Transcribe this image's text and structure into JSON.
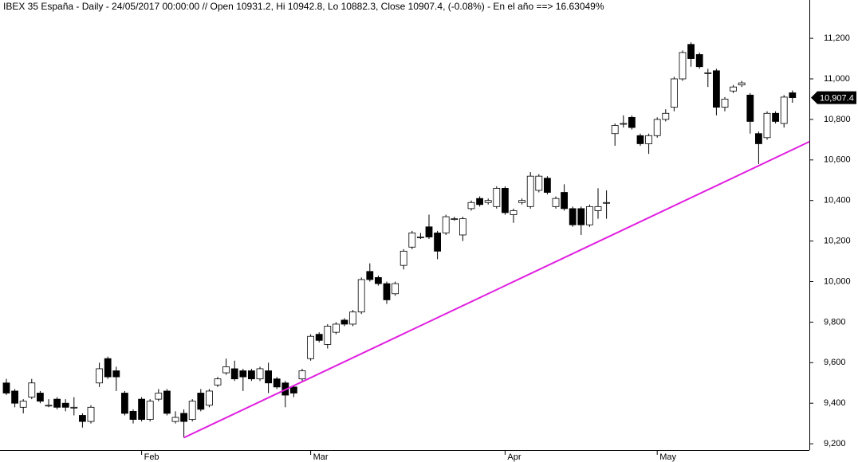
{
  "chart_data": {
    "type": "candlestick",
    "title": "IBEX 35 España - Daily - 24/05/2017 00:00:00 // Open 10931.2, Hi 10942.8, Lo 10882.3, Close 10907.4, (-0.08%) - En el año ==> 16.63049%",
    "categories": [
      null,
      null,
      null,
      null,
      null,
      null,
      null,
      null,
      null,
      null,
      null,
      null,
      null,
      null,
      null,
      null,
      "Feb",
      null,
      null,
      null,
      null,
      null,
      null,
      null,
      null,
      null,
      null,
      null,
      null,
      null,
      null,
      null,
      null,
      null,
      null,
      null,
      "Mar",
      null,
      null,
      null,
      null,
      null,
      null,
      null,
      null,
      null,
      null,
      null,
      null,
      null,
      null,
      null,
      null,
      null,
      null,
      null,
      null,
      null,
      null,
      "Apr",
      null,
      null,
      null,
      null,
      null,
      null,
      null,
      null,
      null,
      null,
      null,
      null,
      null,
      null,
      null,
      null,
      null,
      "May",
      null,
      null,
      null,
      null,
      null,
      null,
      null,
      null,
      null,
      null,
      null,
      null,
      null,
      null,
      null,
      null
    ],
    "open": [
      9500,
      9460,
      9380,
      9430,
      9450,
      9390,
      9420,
      9400,
      9380,
      9340,
      9310,
      9500,
      9620,
      9560,
      9450,
      9360,
      9420,
      9320,
      9420,
      9460,
      9310,
      9350,
      9320,
      9450,
      9390,
      9490,
      9550,
      9570,
      9560,
      9560,
      9520,
      9560,
      9520,
      9500,
      9480,
      9520,
      9620,
      9740,
      9690,
      9750,
      9810,
      9790,
      9850,
      10050,
      10020,
      9990,
      9940,
      10080,
      10170,
      10220,
      10270,
      10240,
      10240,
      10310,
      10230,
      10360,
      10410,
      10390,
      10370,
      10460,
      10330,
      10390,
      10370,
      10450,
      10510,
      10370,
      10440,
      10360,
      10360,
      10280,
      10350,
      10390,
      10730,
      10780,
      10810,
      10720,
      10680,
      10720,
      10800,
      10860,
      11000,
      11170,
      11120,
      11030,
      11040,
      10860,
      10940,
      10970,
      10920,
      10730,
      10710,
      10830,
      10780,
      10931.2
    ],
    "high": [
      9520,
      9470,
      9420,
      9520,
      9460,
      9420,
      9430,
      9420,
      9430,
      9350,
      9390,
      9600,
      9630,
      9580,
      9460,
      9370,
      9430,
      9420,
      9470,
      9470,
      9360,
      9370,
      9420,
      9470,
      9470,
      9530,
      9620,
      9610,
      9570,
      9570,
      9580,
      9600,
      9530,
      9510,
      9490,
      9570,
      9740,
      9750,
      9790,
      9800,
      9820,
      9860,
      10020,
      10090,
      10030,
      10000,
      10000,
      10160,
      10250,
      10240,
      10330,
      10250,
      10330,
      10320,
      10320,
      10400,
      10420,
      10410,
      10470,
      10470,
      10360,
      10410,
      10540,
      10530,
      10520,
      10420,
      10480,
      10370,
      10370,
      10380,
      10460,
      10450,
      10780,
      10820,
      10820,
      10730,
      10730,
      10810,
      10850,
      11010,
      11140,
      11180,
      11130,
      11050,
      11050,
      10910,
      10970,
      10990,
      10930,
      10740,
      10840,
      10840,
      10920,
      10942.8
    ],
    "low": [
      9440,
      9380,
      9350,
      9420,
      9400,
      9380,
      9370,
      9360,
      9340,
      9280,
      9300,
      9480,
      9520,
      9460,
      9340,
      9300,
      9310,
      9310,
      9410,
      9340,
      9300,
      9230,
      9310,
      9360,
      9380,
      9480,
      9540,
      9510,
      9460,
      9510,
      9510,
      9450,
      9470,
      9380,
      9430,
      9510,
      9610,
      9700,
      9670,
      9740,
      9780,
      9780,
      9840,
      10000,
      9980,
      9890,
      9930,
      10060,
      10160,
      10210,
      10210,
      10110,
      10230,
      10300,
      10200,
      10350,
      10370,
      10380,
      10360,
      10330,
      10290,
      10380,
      10360,
      10440,
      10430,
      10360,
      10350,
      10270,
      10230,
      10270,
      10310,
      10310,
      10670,
      10760,
      10750,
      10670,
      10630,
      10710,
      10790,
      10840,
      10990,
      11060,
      11050,
      10960,
      10820,
      10840,
      10930,
      10960,
      10730,
      10580,
      10700,
      10780,
      10760,
      10882.3
    ],
    "close": [
      9450,
      9400,
      9410,
      9500,
      9410,
      9390,
      9380,
      9380,
      9380,
      9310,
      9380,
      9570,
      9530,
      9530,
      9350,
      9320,
      9320,
      9410,
      9450,
      9350,
      9330,
      9310,
      9410,
      9370,
      9460,
      9520,
      9580,
      9520,
      9530,
      9520,
      9570,
      9500,
      9480,
      9440,
      9450,
      9560,
      9730,
      9710,
      9780,
      9790,
      9790,
      9850,
      10010,
      10010,
      9990,
      9910,
      9990,
      10150,
      10240,
      10220,
      10220,
      10150,
      10320,
      10310,
      10310,
      10390,
      10380,
      10400,
      10460,
      10340,
      10350,
      10400,
      10520,
      10520,
      10440,
      10410,
      10360,
      10280,
      10280,
      10370,
      10370,
      10390,
      10770,
      10780,
      10760,
      10680,
      10720,
      10800,
      10830,
      11000,
      11130,
      11100,
      11060,
      11030,
      10860,
      10900,
      10960,
      10980,
      10790,
      10680,
      10830,
      10790,
      10910,
      10907.4
    ],
    "ylim": [
      9169,
      11389
    ],
    "yticks": [
      {
        "value": 9200,
        "label": "9,200"
      },
      {
        "value": 9400,
        "label": "9,400"
      },
      {
        "value": 9600,
        "label": "9,600"
      },
      {
        "value": 9800,
        "label": "9,800"
      },
      {
        "value": 10000,
        "label": "10,000"
      },
      {
        "value": 10200,
        "label": "10,200"
      },
      {
        "value": 10400,
        "label": "10,400"
      },
      {
        "value": 10600,
        "label": "10,600"
      },
      {
        "value": 10800,
        "label": "10,800"
      },
      {
        "value": 11000,
        "label": "11,000"
      },
      {
        "value": 11200,
        "label": "11,200"
      }
    ],
    "last_price": {
      "value": 10907.4,
      "label": "10,907.4"
    },
    "trendline": {
      "color": "#e020e0",
      "points": [
        [
          21,
          9230
        ],
        [
          95,
          10690
        ]
      ]
    }
  }
}
